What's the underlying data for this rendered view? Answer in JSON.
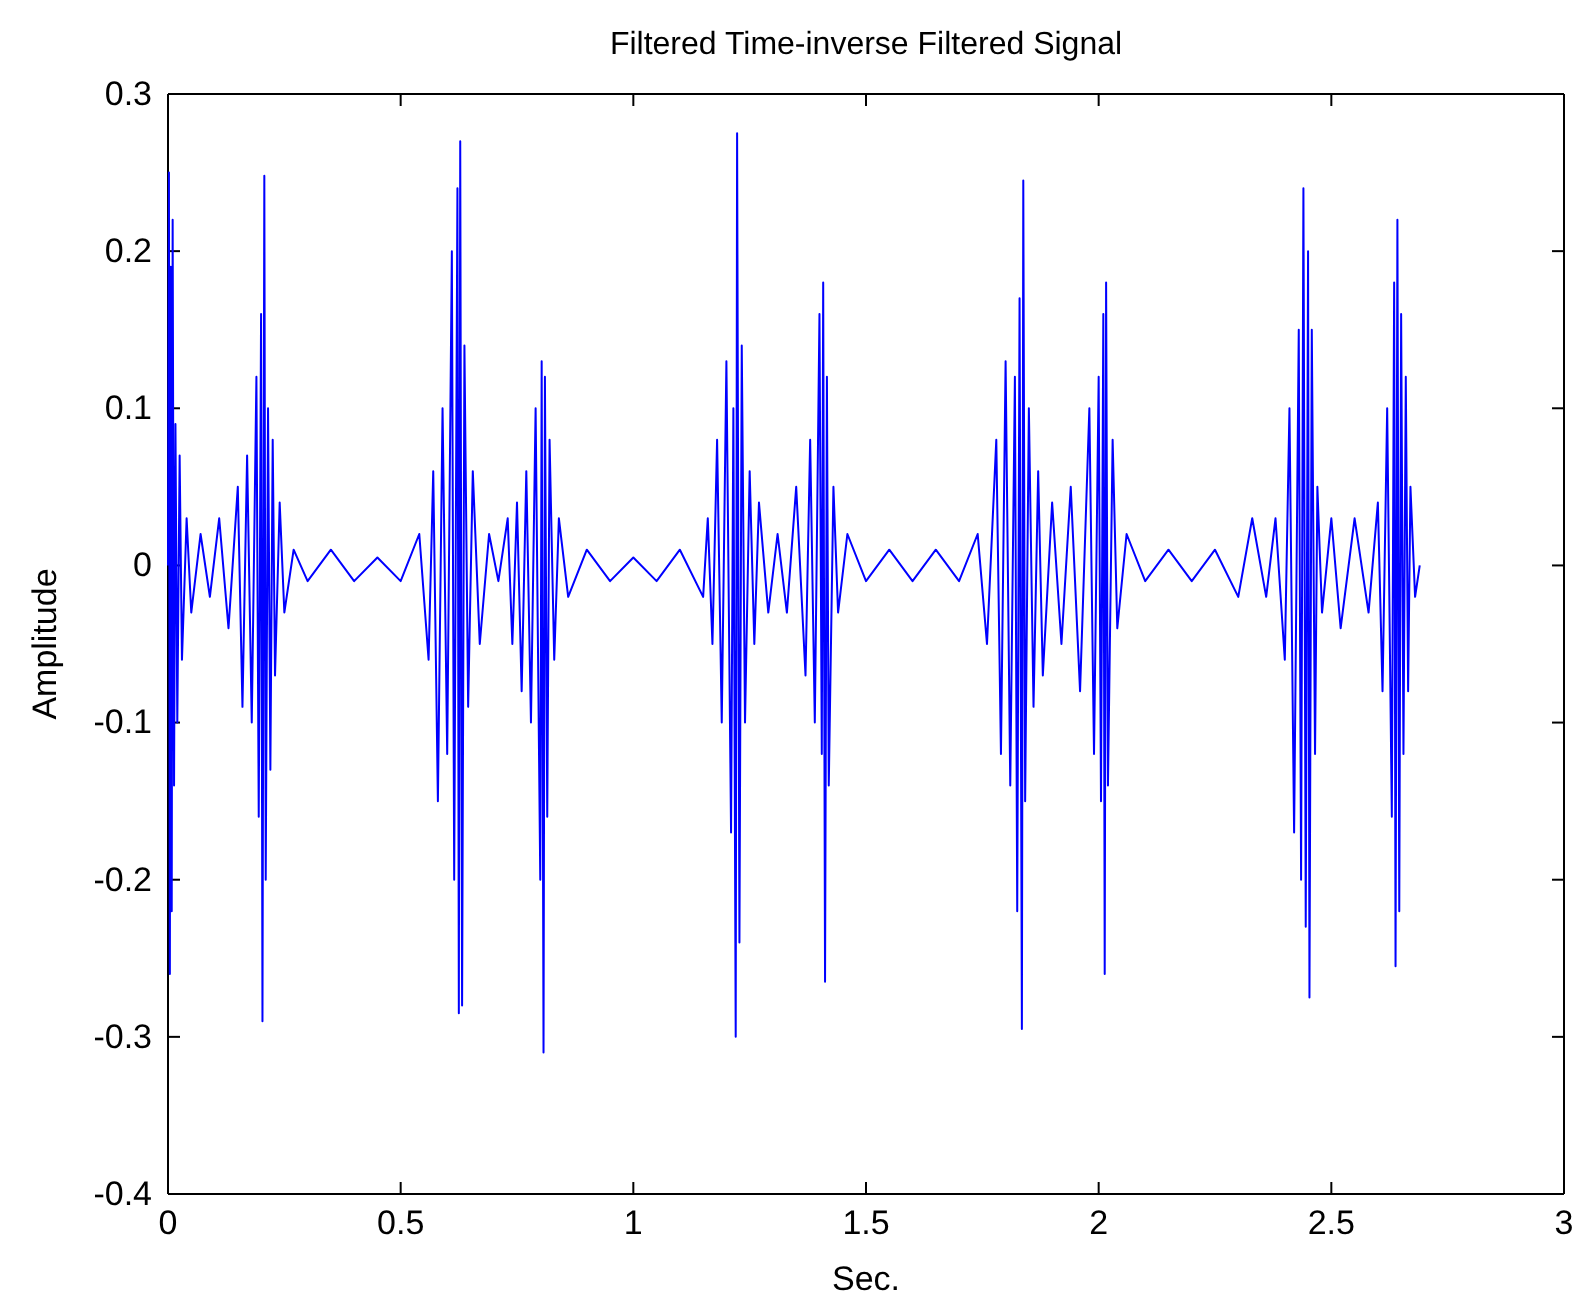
{
  "chart_data": {
    "type": "line",
    "title": "Filtered Time-inverse Filtered Signal",
    "xlabel": "Sec.",
    "ylabel": "Amplitude",
    "xlim": [
      0,
      3
    ],
    "xticks": [
      0,
      0.5,
      1,
      1.5,
      2,
      2.5,
      3
    ],
    "ylim": [
      -0.4,
      0.3
    ],
    "yticks": [
      -0.4,
      -0.3,
      -0.2,
      -0.1,
      0,
      0.1,
      0.2,
      0.3
    ],
    "grid": false,
    "series": [
      {
        "color": "#0000ff",
        "x": [
          0,
          0.002,
          0.004,
          0.006,
          0.008,
          0.01,
          0.013,
          0.016,
          0.02,
          0.025,
          0.03,
          0.04,
          0.05,
          0.07,
          0.09,
          0.11,
          0.13,
          0.15,
          0.16,
          0.17,
          0.18,
          0.19,
          0.195,
          0.2,
          0.203,
          0.207,
          0.21,
          0.215,
          0.22,
          0.225,
          0.23,
          0.24,
          0.25,
          0.27,
          0.3,
          0.35,
          0.4,
          0.45,
          0.5,
          0.54,
          0.56,
          0.57,
          0.58,
          0.59,
          0.6,
          0.61,
          0.615,
          0.622,
          0.625,
          0.628,
          0.632,
          0.637,
          0.645,
          0.655,
          0.67,
          0.69,
          0.71,
          0.73,
          0.74,
          0.75,
          0.76,
          0.77,
          0.78,
          0.79,
          0.8,
          0.803,
          0.807,
          0.81,
          0.815,
          0.82,
          0.83,
          0.84,
          0.86,
          0.9,
          0.95,
          1.0,
          1.05,
          1.1,
          1.15,
          1.16,
          1.17,
          1.18,
          1.19,
          1.2,
          1.21,
          1.215,
          1.22,
          1.223,
          1.228,
          1.233,
          1.24,
          1.25,
          1.26,
          1.27,
          1.29,
          1.31,
          1.33,
          1.35,
          1.37,
          1.38,
          1.39,
          1.4,
          1.405,
          1.408,
          1.412,
          1.416,
          1.42,
          1.43,
          1.44,
          1.46,
          1.5,
          1.55,
          1.6,
          1.65,
          1.7,
          1.74,
          1.76,
          1.78,
          1.79,
          1.8,
          1.81,
          1.82,
          1.825,
          1.83,
          1.835,
          1.838,
          1.842,
          1.85,
          1.86,
          1.87,
          1.88,
          1.9,
          1.92,
          1.94,
          1.96,
          1.98,
          1.99,
          2.0,
          2.005,
          2.01,
          2.013,
          2.016,
          2.02,
          2.03,
          2.04,
          2.06,
          2.1,
          2.15,
          2.2,
          2.25,
          2.3,
          2.33,
          2.36,
          2.38,
          2.4,
          2.41,
          2.42,
          2.43,
          2.435,
          2.44,
          2.445,
          2.45,
          2.453,
          2.458,
          2.465,
          2.47,
          2.48,
          2.5,
          2.52,
          2.55,
          2.58,
          2.6,
          2.61,
          2.62,
          2.63,
          2.635,
          2.638,
          2.642,
          2.646,
          2.65,
          2.655,
          2.66,
          2.665,
          2.67,
          2.68,
          2.69
        ],
        "values": [
          0,
          0.25,
          -0.26,
          0.19,
          -0.22,
          0.22,
          -0.14,
          0.09,
          -0.1,
          0.07,
          -0.06,
          0.03,
          -0.03,
          0.02,
          -0.02,
          0.03,
          -0.04,
          0.05,
          -0.09,
          0.07,
          -0.1,
          0.12,
          -0.16,
          0.16,
          -0.29,
          0.248,
          -0.2,
          0.1,
          -0.13,
          0.08,
          -0.07,
          0.04,
          -0.03,
          0.01,
          -0.01,
          0.01,
          -0.01,
          0.005,
          -0.01,
          0.02,
          -0.06,
          0.06,
          -0.15,
          0.1,
          -0.12,
          0.2,
          -0.2,
          0.24,
          -0.285,
          0.27,
          -0.28,
          0.14,
          -0.09,
          0.06,
          -0.05,
          0.02,
          -0.01,
          0.03,
          -0.05,
          0.04,
          -0.08,
          0.06,
          -0.1,
          0.1,
          -0.2,
          0.13,
          -0.31,
          0.12,
          -0.16,
          0.08,
          -0.06,
          0.03,
          -0.02,
          0.01,
          -0.01,
          0.005,
          -0.01,
          0.01,
          -0.02,
          0.03,
          -0.05,
          0.08,
          -0.1,
          0.13,
          -0.17,
          0.1,
          -0.3,
          0.275,
          -0.24,
          0.14,
          -0.1,
          0.06,
          -0.05,
          0.04,
          -0.03,
          0.02,
          -0.03,
          0.05,
          -0.07,
          0.08,
          -0.1,
          0.16,
          -0.12,
          0.18,
          -0.265,
          0.12,
          -0.14,
          0.05,
          -0.03,
          0.02,
          -0.01,
          0.01,
          -0.01,
          0.01,
          -0.01,
          0.02,
          -0.05,
          0.08,
          -0.12,
          0.13,
          -0.14,
          0.12,
          -0.22,
          0.17,
          -0.295,
          0.245,
          -0.15,
          0.1,
          -0.09,
          0.06,
          -0.07,
          0.04,
          -0.05,
          0.05,
          -0.08,
          0.1,
          -0.12,
          0.12,
          -0.15,
          0.16,
          -0.26,
          0.18,
          -0.14,
          0.08,
          -0.04,
          0.02,
          -0.01,
          0.01,
          -0.01,
          0.01,
          -0.02,
          0.03,
          -0.02,
          0.03,
          -0.06,
          0.1,
          -0.17,
          0.15,
          -0.2,
          0.24,
          -0.23,
          0.2,
          -0.275,
          0.15,
          -0.12,
          0.05,
          -0.03,
          0.03,
          -0.04,
          0.03,
          -0.03,
          0.04,
          -0.08,
          0.1,
          -0.16,
          0.18,
          -0.255,
          0.22,
          -0.22,
          0.16,
          -0.12,
          0.12,
          -0.08,
          0.05,
          -0.02,
          0
        ]
      }
    ]
  }
}
